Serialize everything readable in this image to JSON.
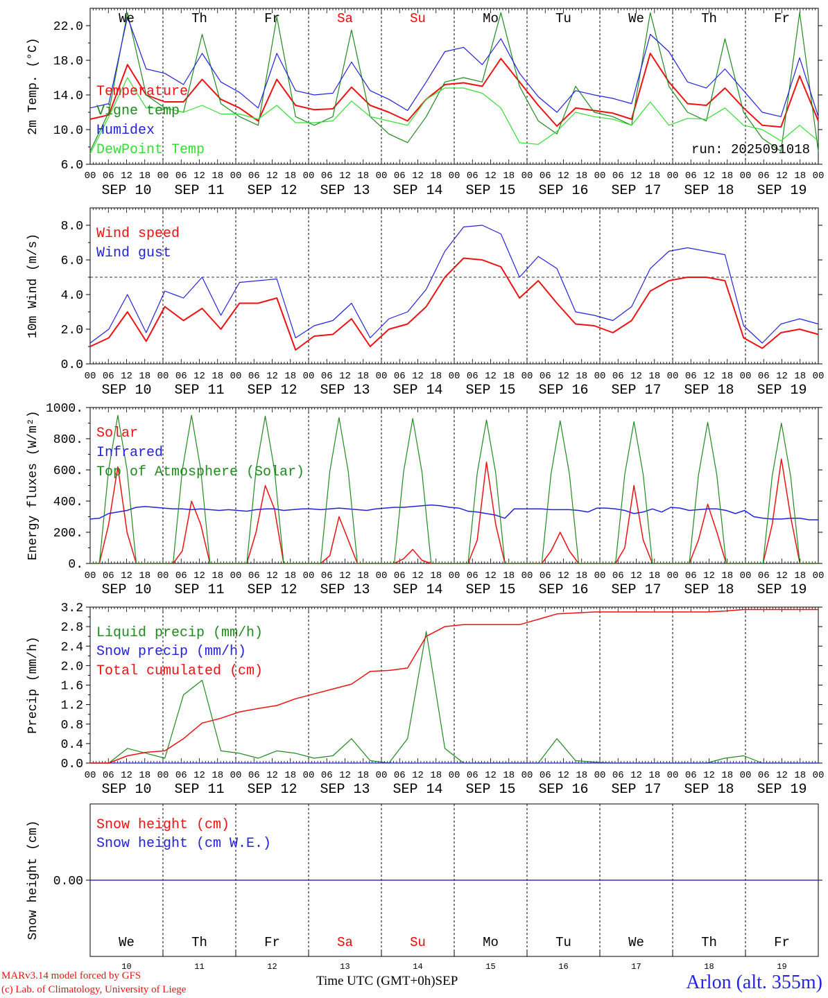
{
  "run_label": "run: 2025091018",
  "days": [
    {
      "name": "We",
      "date": "SEP 10",
      "num": "10",
      "color": "#000000"
    },
    {
      "name": "Th",
      "date": "SEP 11",
      "num": "11",
      "color": "#000000"
    },
    {
      "name": "Fr",
      "date": "SEP 12",
      "num": "12",
      "color": "#000000"
    },
    {
      "name": "Sa",
      "date": "SEP 13",
      "num": "13",
      "color": "#ff0000"
    },
    {
      "name": "Su",
      "date": "SEP 14",
      "num": "14",
      "color": "#ff0000"
    },
    {
      "name": "Mo",
      "date": "SEP 15",
      "num": "15",
      "color": "#000000"
    },
    {
      "name": "Tu",
      "date": "SEP 16",
      "num": "16",
      "color": "#000000"
    },
    {
      "name": "We",
      "date": "SEP 17",
      "num": "17",
      "color": "#000000"
    },
    {
      "name": "Th",
      "date": "SEP 18",
      "num": "18",
      "color": "#000000"
    },
    {
      "name": "Fr",
      "date": "SEP 19",
      "num": "19",
      "color": "#000000"
    }
  ],
  "hour_labels": [
    "00",
    "06",
    "12",
    "18"
  ],
  "colors": {
    "red": "#ee1111",
    "green": "#1f8a1f",
    "blue": "#2222dd",
    "lightgreen": "#33dd33"
  },
  "footer": {
    "credit_line1": "MARv3.14 model forced by GFS",
    "credit_line2": "(c) Lab. of Climatology, University of Liege",
    "x_title": "Time UTC (GMT+0h)",
    "x_month": "SEP",
    "location": "Arlon (alt. 355m)"
  },
  "chart_data": [
    {
      "id": "temperature",
      "type": "line",
      "ylabel": "2m Temp. (°C)",
      "ylim": [
        6,
        24
      ],
      "yticks": [
        6,
        10,
        14,
        18,
        22
      ],
      "ytick_labels": [
        "6.0",
        "10.0",
        "14.0",
        "18.0",
        "22.0"
      ],
      "grid": "vertical-dashed-daily",
      "legend_position": "left",
      "x_start": "SEP 10 00UTC",
      "x_step_hours": 6,
      "series": [
        {
          "name": "Temperature",
          "color": "#ee1111",
          "width": 2,
          "values": [
            11.2,
            11.7,
            17.5,
            14.0,
            13.2,
            13.2,
            15.8,
            13.5,
            12.5,
            11.0,
            15.8,
            12.8,
            12.3,
            12.4,
            14.9,
            12.8,
            12.0,
            11.0,
            13.5,
            15.2,
            15.4,
            15.0,
            18.2,
            15.5,
            12.8,
            10.4,
            12.5,
            12.2,
            11.9,
            11.2,
            18.8,
            15.5,
            13.0,
            12.8,
            14.8,
            12.5,
            10.5,
            10.3,
            16.2,
            11.0
          ]
        },
        {
          "name": "Vigne temp",
          "color": "#1f8a1f",
          "width": 1.2,
          "values": [
            7.5,
            12.0,
            23.5,
            14.0,
            12.5,
            12.0,
            21.0,
            13.0,
            11.5,
            10.5,
            23.0,
            11.5,
            10.5,
            11.5,
            21.5,
            11.5,
            9.5,
            8.5,
            11.5,
            15.5,
            16.0,
            15.5,
            23.5,
            15.0,
            11.0,
            9.5,
            15.0,
            12.0,
            11.5,
            10.5,
            23.5,
            15.0,
            12.0,
            11.0,
            20.5,
            12.0,
            9.0,
            7.5,
            23.5,
            7.5
          ]
        },
        {
          "name": "Humidex",
          "color": "#2222dd",
          "width": 1.2,
          "values": [
            12.5,
            13.0,
            23.0,
            17.0,
            16.5,
            15.2,
            18.8,
            15.5,
            14.3,
            12.5,
            18.8,
            14.5,
            14.0,
            14.2,
            17.8,
            14.5,
            13.5,
            12.2,
            15.5,
            19.0,
            19.5,
            17.5,
            20.5,
            16.5,
            13.8,
            12.0,
            14.5,
            14.0,
            13.6,
            13.0,
            21.0,
            19.0,
            15.5,
            14.8,
            17.0,
            14.5,
            12.0,
            11.5,
            18.3,
            11.5
          ]
        },
        {
          "name": "DewPoint Temp",
          "color": "#33dd33",
          "width": 1.2,
          "values": [
            7.2,
            11.5,
            16.0,
            12.5,
            12.5,
            12.0,
            12.8,
            11.8,
            11.8,
            11.2,
            12.8,
            10.8,
            10.8,
            11.0,
            13.3,
            11.5,
            11.0,
            10.5,
            13.5,
            14.8,
            14.8,
            14.2,
            12.5,
            8.5,
            8.3,
            9.8,
            12.0,
            11.5,
            11.2,
            10.5,
            13.2,
            10.5,
            11.3,
            11.2,
            12.5,
            10.5,
            10.0,
            8.7,
            10.5,
            8.7
          ]
        }
      ]
    },
    {
      "id": "wind",
      "type": "line",
      "ylabel": "10m Wind (m/s)",
      "ylim": [
        0,
        9
      ],
      "yticks": [
        0,
        2,
        4,
        6,
        8
      ],
      "ytick_labels": [
        "0.0",
        "2.0",
        "4.0",
        "6.0",
        "8.0"
      ],
      "reference_line": 5,
      "legend_position": "left",
      "x_start": "SEP 10 00UTC",
      "x_step_hours": 6,
      "series": [
        {
          "name": "Wind speed",
          "color": "#ee1111",
          "width": 2,
          "values": [
            1.0,
            1.5,
            3.0,
            1.3,
            3.3,
            2.5,
            3.2,
            2.0,
            3.5,
            3.5,
            3.8,
            0.8,
            1.6,
            1.7,
            2.6,
            1.0,
            2.0,
            2.3,
            3.3,
            5.0,
            6.1,
            6.0,
            5.6,
            3.8,
            4.8,
            3.5,
            2.3,
            2.2,
            1.8,
            2.5,
            4.2,
            4.8,
            5.0,
            5.0,
            4.8,
            1.5,
            0.9,
            1.8,
            2.0,
            1.7
          ]
        },
        {
          "name": "Wind gust",
          "color": "#2222dd",
          "width": 1.2,
          "values": [
            1.2,
            2.0,
            4.0,
            1.8,
            4.2,
            3.8,
            5.0,
            2.8,
            4.7,
            4.8,
            4.9,
            1.5,
            2.2,
            2.5,
            3.5,
            1.5,
            2.6,
            3.0,
            4.3,
            6.5,
            7.9,
            8.0,
            7.5,
            5.0,
            6.2,
            5.5,
            3.0,
            2.8,
            2.5,
            3.3,
            5.5,
            6.5,
            6.7,
            6.5,
            6.3,
            2.2,
            1.2,
            2.3,
            2.6,
            2.3
          ]
        }
      ]
    },
    {
      "id": "energy",
      "type": "line",
      "ylabel": "Energy fluxes (W/m²)",
      "ylim": [
        0,
        1000
      ],
      "yticks": [
        0,
        200,
        400,
        600,
        800,
        1000
      ],
      "ytick_labels": [
        "0.",
        "200.",
        "400.",
        "600.",
        "800.",
        "1000."
      ],
      "legend_position": "left",
      "x_start": "SEP 10 00UTC",
      "x_step_hours": 3,
      "series": [
        {
          "name": "Solar",
          "color": "#ee1111",
          "width": 1.5,
          "values": [
            0,
            0,
            250,
            620,
            200,
            0,
            0,
            0,
            0,
            0,
            80,
            400,
            250,
            0,
            0,
            0,
            0,
            0,
            200,
            500,
            350,
            0,
            0,
            0,
            0,
            0,
            50,
            300,
            150,
            0,
            0,
            0,
            0,
            0,
            30,
            90,
            20,
            0,
            0,
            0,
            0,
            0,
            150,
            650,
            250,
            0,
            0,
            0,
            0,
            0,
            80,
            200,
            80,
            0,
            0,
            0,
            0,
            0,
            100,
            500,
            150,
            0,
            0,
            0,
            0,
            0,
            150,
            380,
            200,
            0,
            0,
            0,
            0,
            0,
            250,
            670,
            300,
            0,
            0,
            0
          ]
        },
        {
          "name": "Infrared",
          "color": "#2222dd",
          "width": 1.5,
          "values": [
            285,
            290,
            320,
            330,
            340,
            360,
            365,
            360,
            355,
            350,
            350,
            345,
            350,
            345,
            340,
            345,
            340,
            335,
            345,
            350,
            350,
            340,
            345,
            350,
            350,
            345,
            350,
            355,
            350,
            345,
            340,
            350,
            355,
            360,
            360,
            365,
            370,
            375,
            370,
            360,
            355,
            335,
            330,
            320,
            310,
            290,
            350,
            350,
            350,
            350,
            345,
            345,
            345,
            340,
            330,
            355,
            355,
            350,
            340,
            320,
            330,
            350,
            330,
            360,
            355,
            340,
            345,
            350,
            350,
            340,
            320,
            340,
            300,
            290,
            285,
            285,
            290,
            290,
            280,
            280
          ]
        },
        {
          "name": "Top of Atmosphere (Solar)",
          "color": "#1f8a1f",
          "width": 1.2,
          "values": [
            0,
            0,
            600,
            950,
            600,
            0,
            0,
            0,
            0,
            0,
            600,
            950,
            600,
            0,
            0,
            0,
            0,
            0,
            600,
            945,
            600,
            0,
            0,
            0,
            0,
            0,
            590,
            935,
            590,
            0,
            0,
            0,
            0,
            0,
            585,
            930,
            585,
            0,
            0,
            0,
            0,
            0,
            580,
            920,
            580,
            0,
            0,
            0,
            0,
            0,
            575,
            915,
            575,
            0,
            0,
            0,
            0,
            0,
            570,
            910,
            570,
            0,
            0,
            0,
            0,
            0,
            565,
            905,
            565,
            0,
            0,
            0,
            0,
            0,
            560,
            900,
            560,
            0,
            0,
            0
          ]
        }
      ]
    },
    {
      "id": "precip",
      "type": "line",
      "ylabel": "Precip (mm/h)",
      "ylim": [
        0,
        3.2
      ],
      "yticks": [
        0,
        0.4,
        0.8,
        1.2,
        1.6,
        2.0,
        2.4,
        2.8,
        3.2
      ],
      "ytick_labels": [
        "0.0",
        "0.4",
        "0.8",
        "1.2",
        "1.6",
        "2.0",
        "2.4",
        "2.8",
        "3.2"
      ],
      "legend_position": "left",
      "x_start": "SEP 10 00UTC",
      "x_step_hours": 6,
      "series": [
        {
          "name": "Liquid precip (mm/h)",
          "color": "#1f8a1f",
          "width": 1.2,
          "values": [
            0,
            0,
            0.3,
            0.2,
            0.1,
            1.4,
            1.7,
            0.25,
            0.2,
            0.1,
            0.25,
            0.2,
            0.1,
            0.15,
            0.5,
            0.05,
            0,
            0.5,
            2.7,
            0.3,
            0,
            0,
            0,
            0,
            0,
            0.5,
            0.05,
            0.02,
            0,
            0,
            0,
            0,
            0,
            0,
            0.1,
            0.15,
            0,
            0,
            0,
            0
          ]
        },
        {
          "name": "Snow precip (mm/h)",
          "color": "#2222dd",
          "width": 1.2,
          "values": [
            0,
            0,
            0,
            0,
            0,
            0,
            0,
            0,
            0,
            0,
            0,
            0,
            0,
            0,
            0,
            0,
            0,
            0,
            0,
            0,
            0,
            0,
            0,
            0,
            0,
            0,
            0,
            0,
            0,
            0,
            0,
            0,
            0,
            0,
            0,
            0,
            0,
            0,
            0,
            0
          ]
        },
        {
          "name": "Total cumulated (cm)",
          "color": "#ee1111",
          "width": 1.5,
          "values": [
            0,
            0,
            0.15,
            0.22,
            0.25,
            0.5,
            0.82,
            0.92,
            1.05,
            1.12,
            1.18,
            1.32,
            1.42,
            1.52,
            1.62,
            1.88,
            1.9,
            1.95,
            2.6,
            2.8,
            2.84,
            2.84,
            2.84,
            2.84,
            2.95,
            3.06,
            3.08,
            3.1,
            3.1,
            3.1,
            3.1,
            3.1,
            3.1,
            3.1,
            3.12,
            3.15,
            3.15,
            3.15,
            3.15,
            3.15
          ]
        }
      ]
    },
    {
      "id": "snow",
      "type": "line",
      "ylabel": "Snow height (cm)",
      "ylim": [
        -1,
        1
      ],
      "yticks": [
        0
      ],
      "ytick_labels": [
        "0.00"
      ],
      "legend_position": "left",
      "x_start": "SEP 10 00UTC",
      "x_step_hours": 6,
      "series": [
        {
          "name": "Snow height (cm)",
          "color": "#ee1111",
          "width": 1.2,
          "values": [
            0,
            0,
            0,
            0,
            0,
            0,
            0,
            0,
            0,
            0,
            0,
            0,
            0,
            0,
            0,
            0,
            0,
            0,
            0,
            0,
            0,
            0,
            0,
            0,
            0,
            0,
            0,
            0,
            0,
            0,
            0,
            0,
            0,
            0,
            0,
            0,
            0,
            0,
            0,
            0
          ]
        },
        {
          "name": "Snow height (cm W.E.)",
          "color": "#2222dd",
          "width": 1.2,
          "values": [
            0,
            0,
            0,
            0,
            0,
            0,
            0,
            0,
            0,
            0,
            0,
            0,
            0,
            0,
            0,
            0,
            0,
            0,
            0,
            0,
            0,
            0,
            0,
            0,
            0,
            0,
            0,
            0,
            0,
            0,
            0,
            0,
            0,
            0,
            0,
            0,
            0,
            0,
            0,
            0
          ]
        }
      ]
    }
  ]
}
